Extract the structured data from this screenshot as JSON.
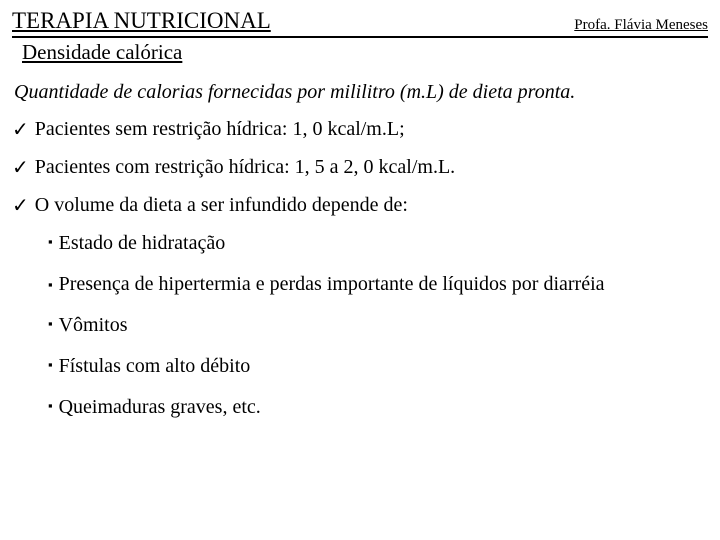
{
  "header": {
    "title": "TERAPIA NUTRICIONAL",
    "author": "Profa. Flávia Meneses"
  },
  "subtitle": "Densidade calórica",
  "definition": "Quantidade de calorias fornecidas por mililitro (m.L) de dieta pronta.",
  "checks": [
    "Pacientes sem restrição hídrica: 1, 0 kcal/m.L;",
    "Pacientes com restrição hídrica: 1, 5 a 2, 0 kcal/m.L.",
    "O volume da dieta a ser infundido depende de:"
  ],
  "squares": [
    "Estado de hidratação",
    "Presença de hipertermia e perdas importante de líquidos por diarréia",
    "Vômitos",
    "Fístulas com alto débito",
    "Queimaduras graves, etc."
  ],
  "marks": {
    "check": "✓",
    "square": "▪"
  }
}
